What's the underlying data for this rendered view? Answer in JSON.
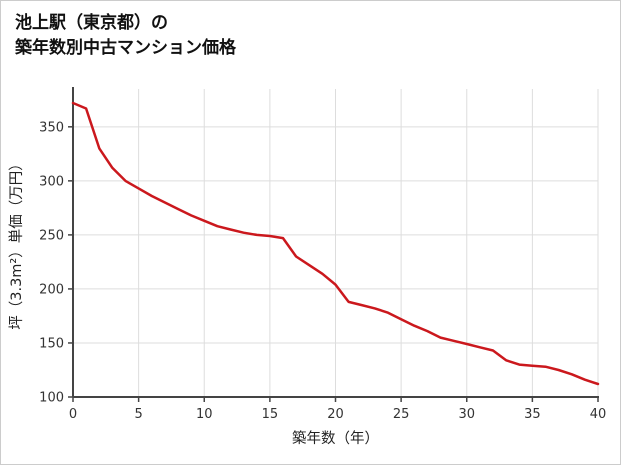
{
  "page": {
    "title_line1": "池上駅（東京都）の",
    "title_line2": "築年数別中古マンション価格"
  },
  "chart_data": {
    "type": "line",
    "title": "池上駅（東京都）の築年数別中古マンション価格",
    "xlabel": "築年数（年）",
    "ylabel": "坪（3.3m²）単価（万円）",
    "x": [
      0,
      1,
      2,
      3,
      4,
      5,
      6,
      7,
      8,
      9,
      10,
      11,
      12,
      13,
      14,
      15,
      16,
      17,
      18,
      19,
      20,
      21,
      22,
      23,
      24,
      25,
      26,
      27,
      28,
      29,
      30,
      31,
      32,
      33,
      34,
      35,
      36,
      37,
      38,
      39,
      40
    ],
    "y": [
      372,
      367,
      330,
      312,
      300,
      293,
      286,
      280,
      274,
      268,
      263,
      258,
      255,
      252,
      250,
      249,
      247,
      230,
      222,
      214,
      204,
      188,
      185,
      182,
      178,
      172,
      166,
      161,
      155,
      152,
      149,
      146,
      143,
      134,
      130,
      129,
      128,
      125,
      121,
      116,
      112
    ],
    "xlim": [
      0,
      40
    ],
    "ylim": [
      100,
      385
    ],
    "x_ticks": [
      0,
      5,
      10,
      15,
      20,
      25,
      30,
      35,
      40
    ],
    "y_ticks": [
      100,
      150,
      200,
      250,
      300,
      350
    ],
    "grid": true,
    "legend": "none",
    "line_color": "#cb181d",
    "axis_color": "#444444",
    "grid_color": "#dddddd",
    "background_color": "#ffffff"
  }
}
